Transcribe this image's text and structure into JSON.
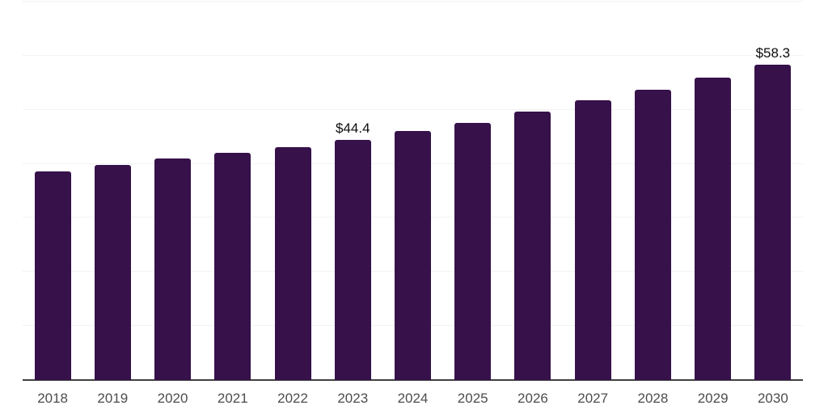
{
  "page": {
    "background": "#ffffff"
  },
  "chart_data": {
    "type": "bar",
    "title": "",
    "xlabel": "",
    "ylabel": "",
    "categories": [
      "2018",
      "2019",
      "2020",
      "2021",
      "2022",
      "2023",
      "2024",
      "2025",
      "2026",
      "2027",
      "2028",
      "2029",
      "2030"
    ],
    "values": [
      38.6,
      39.8,
      41.0,
      42.0,
      43.1,
      44.4,
      46.1,
      47.6,
      49.7,
      51.7,
      53.7,
      55.9,
      58.3
    ],
    "bar_labels": [
      "",
      "",
      "",
      "",
      "",
      "$44.4",
      "",
      "",
      "",
      "",
      "",
      "",
      "$58.3"
    ],
    "ylim": [
      0,
      70
    ],
    "grid": true,
    "grid_step": 10,
    "legend": "none",
    "y_axis_ticks_visible": false,
    "colors": {
      "bar": "#36114a",
      "axis_line": "#404040",
      "tick_label": "#4d4d4d",
      "data_label": "#0d0d0d",
      "gridline": "#f2f2f2",
      "background": "#ffffff"
    }
  }
}
